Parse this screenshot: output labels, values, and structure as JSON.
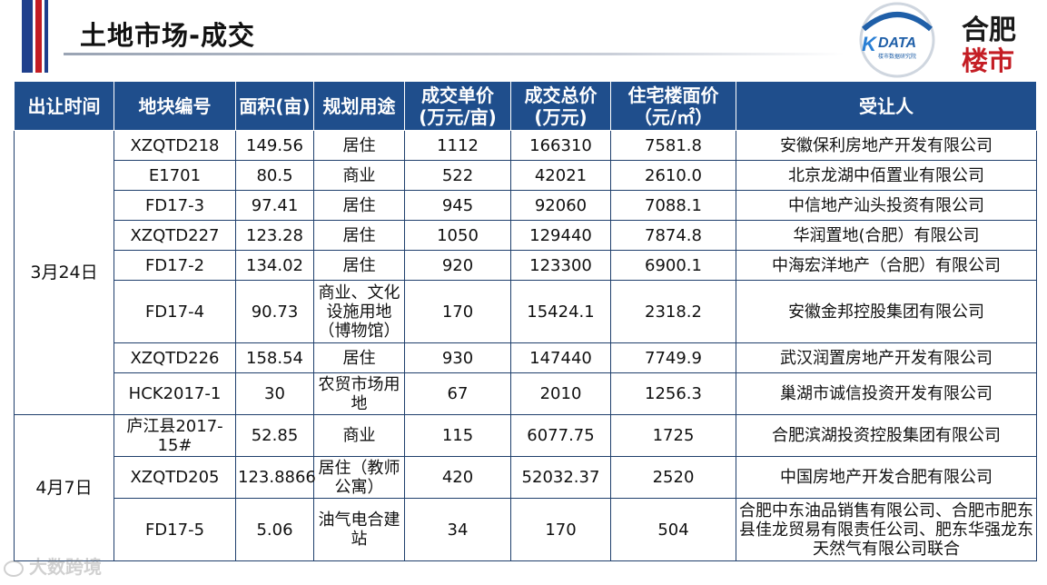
{
  "header": {
    "title": "土地市场-成交"
  },
  "logos": {
    "kdata": {
      "name": "DATA",
      "sub": "楼市数据研究院",
      "brand_color": "#1f5fa8"
    },
    "hefei": {
      "line1": "合肥",
      "line2": "楼市",
      "accent": "#c41d24"
    }
  },
  "colors": {
    "header_bg": "#1f4e8c",
    "header_text": "#ffffff",
    "accent_blue": "#1f3f8c",
    "accent_red": "#c41d24"
  },
  "table": {
    "columns": [
      "出让时间",
      "地块编号",
      "面积(亩)",
      "规划用途",
      "成交单价\n(万元/亩)",
      "成交总价\n(万元)",
      "住宅楼面价\n（元/㎡）",
      "受让人"
    ],
    "groups": [
      {
        "date": "3月24日",
        "rows": [
          [
            "XZQTD218",
            "149.56",
            "居住",
            "1112",
            "166310",
            "7581.8",
            "安徽保利房地产开发有限公司"
          ],
          [
            "E1701",
            "80.5",
            "商业",
            "522",
            "42021",
            "2610.0",
            "北京龙湖中佰置业有限公司"
          ],
          [
            "FD17-3",
            "97.41",
            "居住",
            "945",
            "92060",
            "7088.1",
            "中信地产汕头投资有限公司"
          ],
          [
            "XZQTD227",
            "123.28",
            "居住",
            "1050",
            "129440",
            "7874.8",
            "华润置地(合肥）有限公司"
          ],
          [
            "FD17-2",
            "134.02",
            "居住",
            "920",
            "123300",
            "6900.1",
            "中海宏洋地产（合肥）有限公司"
          ],
          [
            "FD17-4",
            "90.73",
            "商业、文化设施用地（博物馆）",
            "170",
            "15424.1",
            "2318.2",
            "安徽金邦控股集团有限公司"
          ],
          [
            "XZQTD226",
            "158.54",
            "居住",
            "930",
            "147440",
            "7749.9",
            "武汉润置房地产开发有限公司"
          ],
          [
            "HCK2017-1",
            "30",
            "农贸市场用地",
            "67",
            "2010",
            "1256.3",
            "巢湖市诚信投资开发有限公司"
          ]
        ]
      },
      {
        "date": "4月7日",
        "rows": [
          [
            "庐江县2017-15#",
            "52.85",
            "商业",
            "115",
            "6077.75",
            "1725",
            "合肥滨湖投资控股集团有限公司"
          ],
          [
            "XZQTD205",
            "123.8866",
            "居住（教师公寓）",
            "420",
            "52032.37",
            "2520",
            "中国房地产开发合肥有限公司"
          ],
          [
            "FD17-5",
            "5.06",
            "油气电合建站",
            "34",
            "170",
            "504",
            "合肥中东油品销售有限公司、合肥市肥东县佳龙贸易有限责任公司、肥东华强龙东天然气有限公司联合"
          ]
        ]
      }
    ]
  },
  "watermark": {
    "text": "大数跨境",
    "icon": "weibo-icon"
  }
}
